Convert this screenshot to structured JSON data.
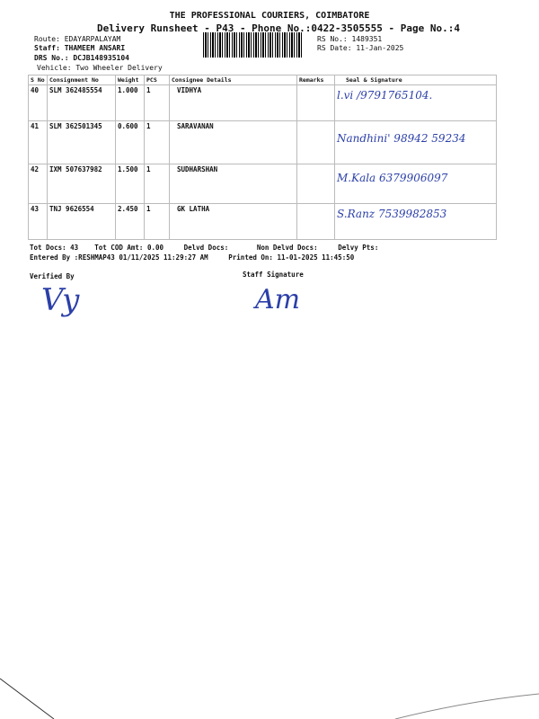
{
  "header": {
    "company": "THE PROFESSIONAL COURIERS, COIMBATORE",
    "subtitle": "Delivery Runsheet - P43 - Phone No.:0422-3505555 - Page No.:4",
    "route": "Route: EDAYARPALAYAM",
    "staff": "Staff: THAMEEM ANSARI",
    "drs": "DRS No.: DCJB148935104",
    "vehicle": "Vehicle: Two Wheeler Delivery",
    "rs_no": "RS No.: 1489351",
    "rs_date": "RS Date: 11-Jan-2025"
  },
  "table": {
    "columns": [
      "S No",
      "Consignment No",
      "Weight",
      "PCS",
      "Consignee Details",
      "Remarks",
      "Seal & Signature"
    ],
    "rows": [
      {
        "sno": "40",
        "consignment": "SLM 362485554",
        "weight": "1.000",
        "pcs": "1",
        "consignee": "VIDHYA",
        "remarks": "",
        "signature": "l.vi /9791765104."
      },
      {
        "sno": "41",
        "consignment": "SLM 362501345",
        "weight": "0.600",
        "pcs": "1",
        "consignee": "SARAVANAN",
        "remarks": "",
        "signature": "Nandhini' 98942 59234"
      },
      {
        "sno": "42",
        "consignment": "IXM 507637982",
        "weight": "1.500",
        "pcs": "1",
        "consignee": "SUDHARSHAN",
        "remarks": "",
        "signature": "M.Kala 6379906097"
      },
      {
        "sno": "43",
        "consignment": "TNJ 9626554",
        "weight": "2.450",
        "pcs": "1",
        "consignee": "GK LATHA",
        "remarks": "",
        "signature": "S.Ranz 7539982853"
      }
    ]
  },
  "footer": {
    "tot_docs": "Tot Docs:  43",
    "tot_cod": "Tot COD Amt:    0.00",
    "delvd": "Delvd Docs:",
    "non_delvd": "Non Delvd Docs:",
    "delvy_pts": "Delvy Pts:",
    "entered_by": "Entered By :RESHMAP43 01/11/2025 11:29:27 AM",
    "printed_on": "Printed On: 11-01-2025 11:45:50",
    "verified_by": "Verified By",
    "staff_signature": "Staff Signature",
    "verifier_sig": "Vy",
    "staff_sig": "Am"
  }
}
